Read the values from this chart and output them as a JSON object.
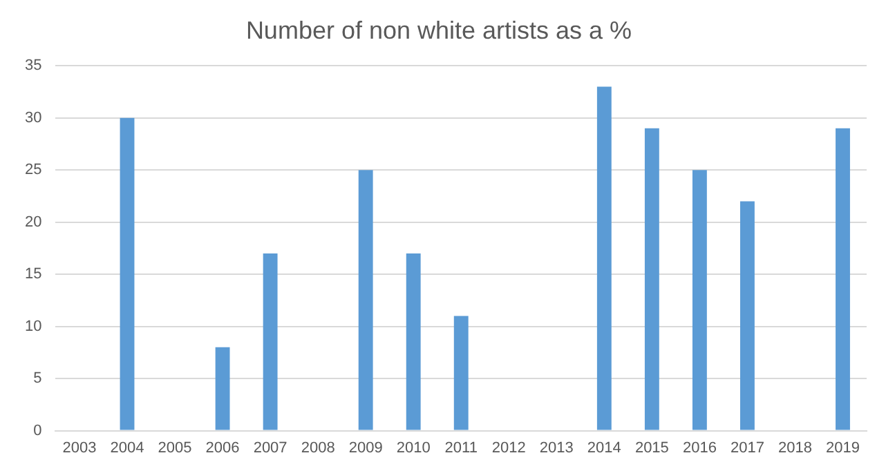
{
  "chart_data": {
    "type": "bar",
    "title": "Number of non white artists as a %",
    "categories": [
      "2003",
      "2004",
      "2005",
      "2006",
      "2007",
      "2008",
      "2009",
      "2010",
      "2011",
      "2012",
      "2013",
      "2014",
      "2015",
      "2016",
      "2017",
      "2018",
      "2019"
    ],
    "values": [
      0,
      30,
      0,
      8,
      17,
      0,
      25,
      17,
      11,
      0,
      0,
      33,
      29,
      25,
      22,
      0,
      29
    ],
    "color": "#5b9bd5",
    "ylim": [
      0,
      35
    ],
    "yticks": [
      0,
      5,
      10,
      15,
      20,
      25,
      30,
      35
    ],
    "grid": "y"
  }
}
